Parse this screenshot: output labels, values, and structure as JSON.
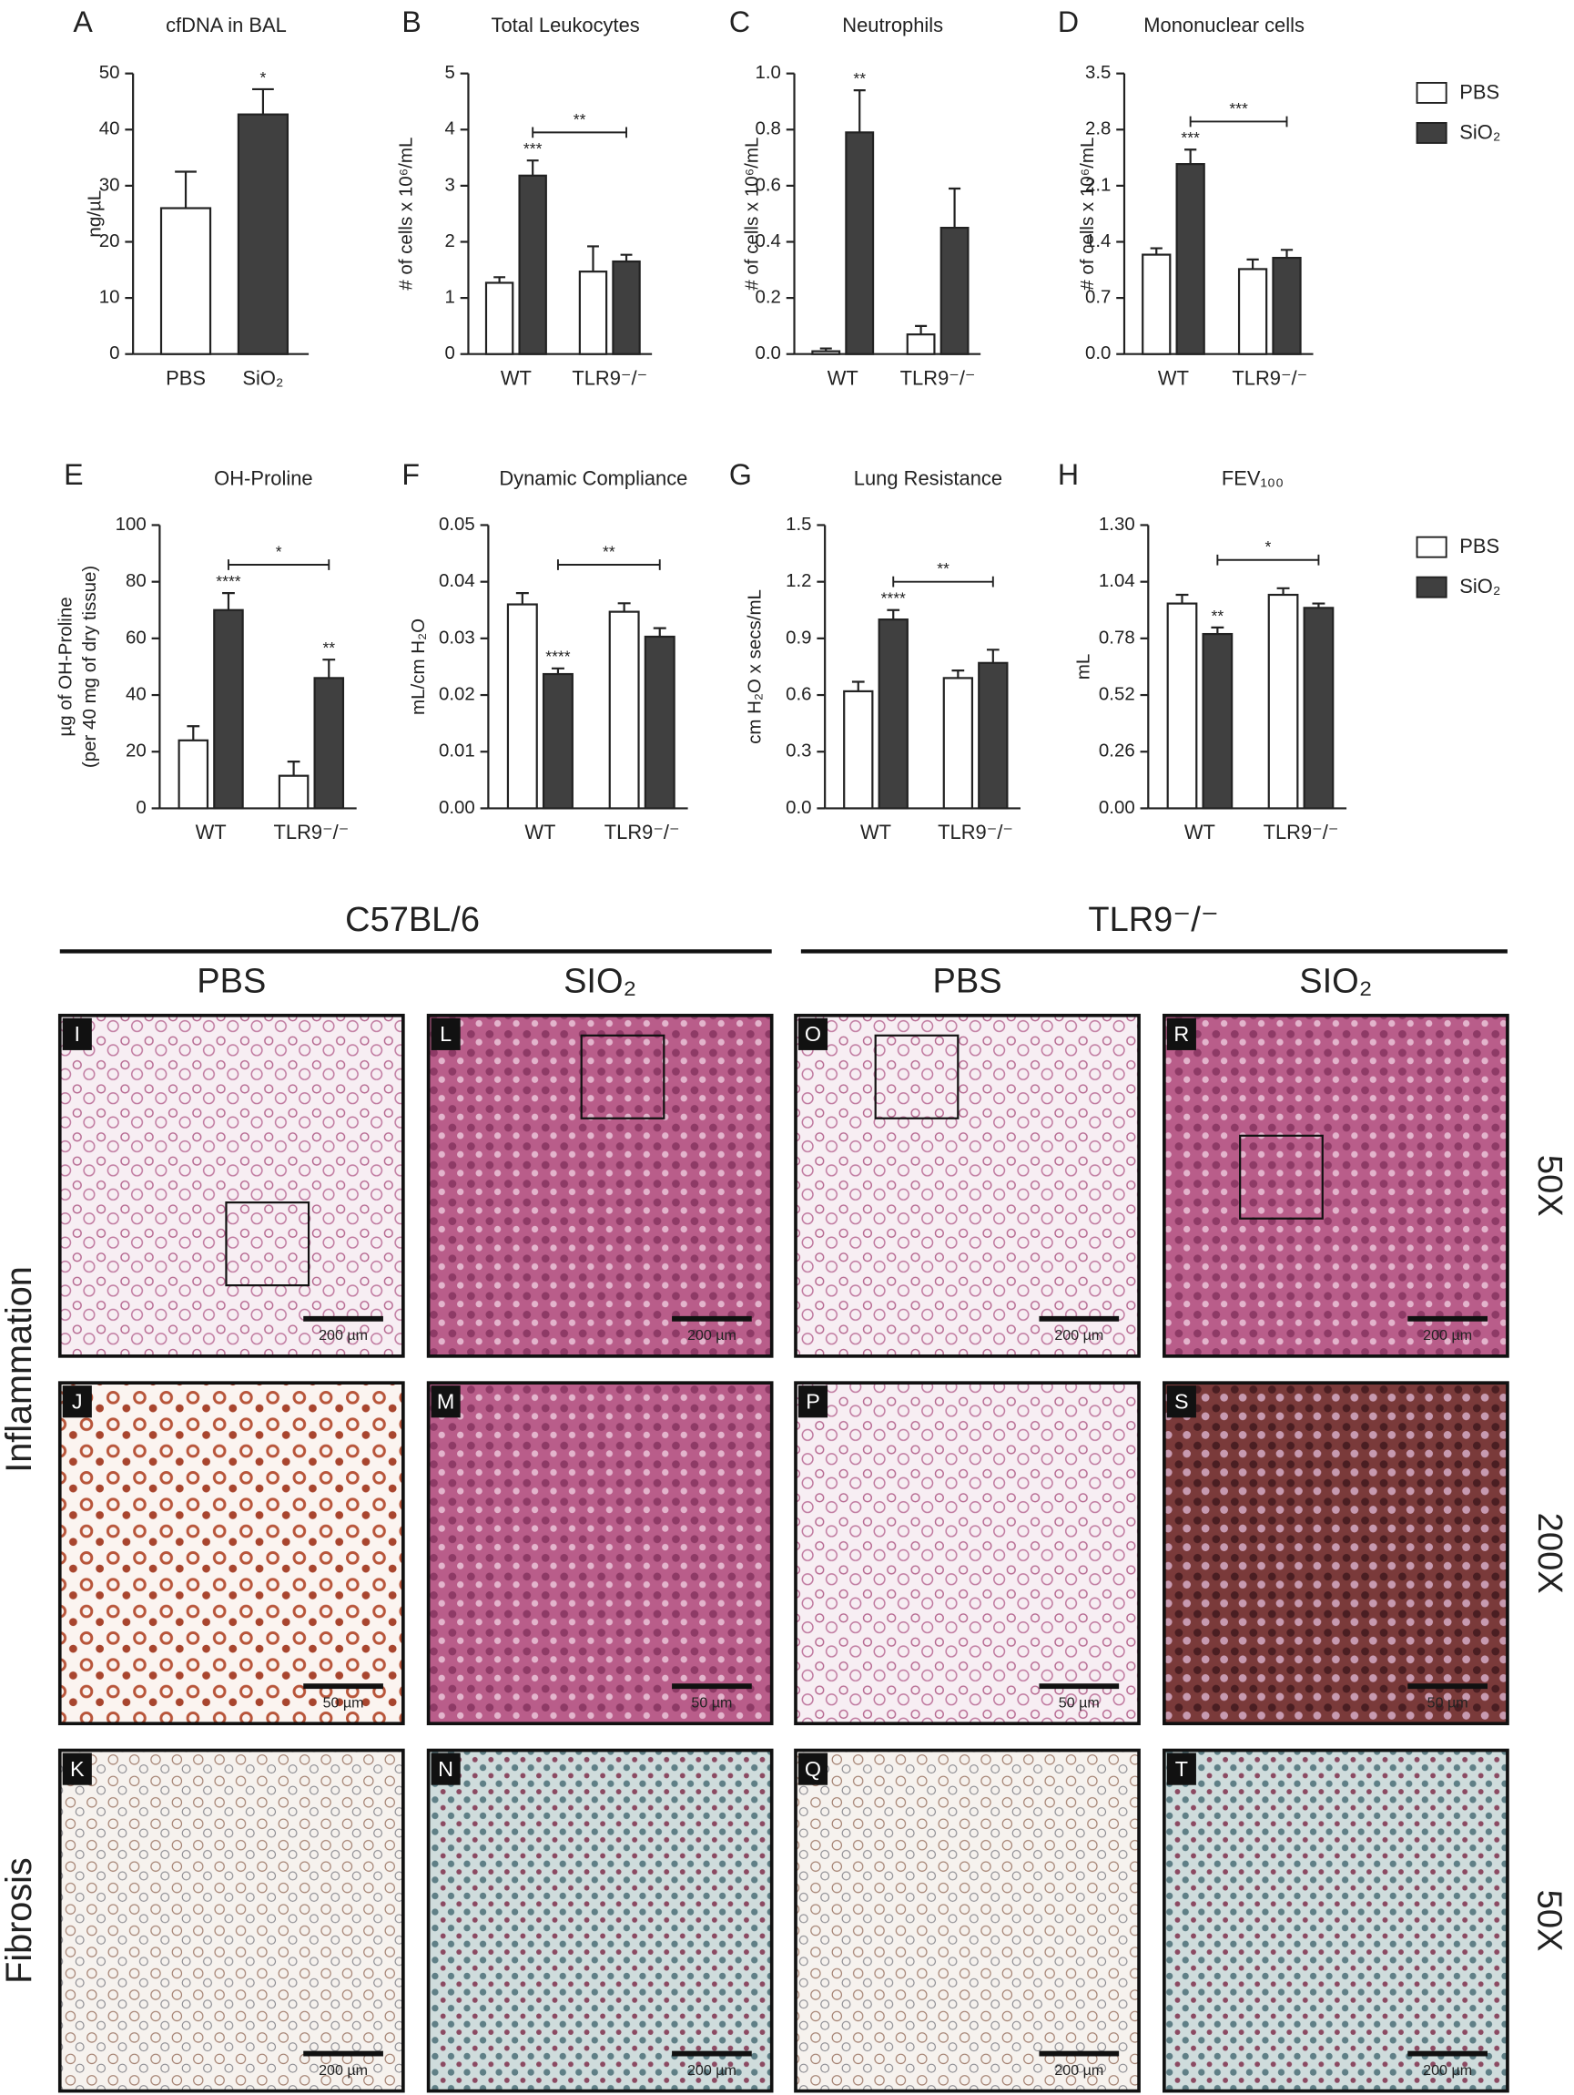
{
  "chart_data": [
    {
      "type": "bar",
      "panel": "A",
      "title": "cfDNA in BAL",
      "ylabel": "ng/µL",
      "categories": [
        "PBS",
        "SiO₂"
      ],
      "values": [
        26,
        42.7
      ],
      "errors": [
        6.5,
        4.5
      ],
      "colors": [
        "#ffffff",
        "#404040"
      ],
      "ylim": [
        0,
        50
      ],
      "yticks": [
        0,
        10,
        20,
        30,
        40,
        50
      ],
      "significance": [
        {
          "label": "*",
          "at": 1
        }
      ]
    },
    {
      "type": "bar",
      "panel": "B",
      "title": "Total Leukocytes",
      "ylabel": "# of cells x 10⁶/mL",
      "categories": [
        "WT",
        "TLR9⁻/⁻"
      ],
      "series": [
        {
          "name": "PBS",
          "color": "#ffffff",
          "values": [
            1.27,
            1.47
          ],
          "errors": [
            0.1,
            0.45
          ]
        },
        {
          "name": "SiO₂",
          "color": "#404040",
          "values": [
            3.18,
            1.65
          ],
          "errors": [
            0.27,
            0.12
          ]
        }
      ],
      "ylim": [
        0,
        5
      ],
      "yticks": [
        0,
        1,
        2,
        3,
        4,
        5
      ],
      "significance": [
        {
          "label": "***",
          "at": [
            1,
            0
          ]
        }
      ],
      "bracket": {
        "label": "**",
        "between": [
          [
            1,
            0
          ],
          [
            1,
            1
          ]
        ]
      }
    },
    {
      "type": "bar",
      "panel": "C",
      "title": "Neutrophils",
      "ylabel": "# of cells x 10⁶/mL",
      "categories": [
        "WT",
        "TLR9⁻/⁻"
      ],
      "series": [
        {
          "name": "PBS",
          "color": "#ffffff",
          "values": [
            0.01,
            0.07
          ],
          "errors": [
            0.01,
            0.03
          ]
        },
        {
          "name": "SiO₂",
          "color": "#404040",
          "values": [
            0.79,
            0.45
          ],
          "errors": [
            0.15,
            0.14
          ]
        }
      ],
      "ylim": [
        0,
        1
      ],
      "yticks": [
        {
          "value": 0,
          "label": "0.0"
        },
        0.2,
        0.4,
        0.6,
        0.8,
        {
          "value": 1,
          "label": "1.0"
        }
      ],
      "significance": [
        {
          "label": "**",
          "at": [
            1,
            0
          ]
        }
      ]
    },
    {
      "type": "bar",
      "panel": "D",
      "title": "Mononuclear cells",
      "ylabel": "# of cells x 10⁶/mL",
      "categories": [
        "WT",
        "TLR9⁻/⁻"
      ],
      "series": [
        {
          "name": "PBS",
          "color": "#ffffff",
          "values": [
            1.24,
            1.06
          ],
          "errors": [
            0.08,
            0.12
          ]
        },
        {
          "name": "SiO₂",
          "color": "#404040",
          "values": [
            2.37,
            1.2
          ],
          "errors": [
            0.18,
            0.1
          ]
        }
      ],
      "ylim": [
        0,
        3.5
      ],
      "yticks": [
        {
          "value": 0,
          "label": "0.0"
        },
        0.7,
        1.4,
        2.1,
        2.8,
        3.5
      ],
      "significance": [
        {
          "label": "***",
          "at": [
            1,
            0
          ]
        }
      ],
      "bracket": {
        "label": "***",
        "between": [
          [
            1,
            0
          ],
          [
            1,
            1
          ]
        ]
      }
    },
    {
      "type": "bar",
      "panel": "E",
      "title": "OH-Proline",
      "ylabel": [
        "µg of OH-Proline",
        "(per 40 mg of dry tissue)"
      ],
      "categories": [
        "WT",
        "TLR9⁻/⁻"
      ],
      "series": [
        {
          "name": "PBS",
          "color": "#ffffff",
          "values": [
            24,
            11.5
          ],
          "errors": [
            5,
            5
          ]
        },
        {
          "name": "SiO₂",
          "color": "#404040",
          "values": [
            70,
            46
          ],
          "errors": [
            6,
            6.5
          ]
        }
      ],
      "ylim": [
        0,
        100
      ],
      "yticks": [
        0,
        20,
        40,
        60,
        80,
        100
      ],
      "significance": [
        {
          "label": "****",
          "at": [
            1,
            0
          ]
        },
        {
          "label": "**",
          "at": [
            1,
            1
          ]
        }
      ],
      "bracket": {
        "label": "*",
        "between": [
          [
            1,
            0
          ],
          [
            1,
            1
          ]
        ]
      }
    },
    {
      "type": "bar",
      "panel": "F",
      "title": "Dynamic Compliance",
      "ylabel": "mL/cm H₂O",
      "categories": [
        "WT",
        "TLR9⁻/⁻"
      ],
      "series": [
        {
          "name": "PBS",
          "color": "#ffffff",
          "values": [
            0.036,
            0.0347
          ],
          "errors": [
            0.002,
            0.0015
          ]
        },
        {
          "name": "SiO₂",
          "color": "#404040",
          "values": [
            0.0237,
            0.0303
          ],
          "errors": [
            0.001,
            0.0015
          ]
        }
      ],
      "ylim": [
        0,
        0.05
      ],
      "yticks": [
        {
          "value": 0,
          "label": "0.00"
        },
        0.01,
        0.02,
        0.03,
        0.04,
        0.05
      ],
      "significance": [
        {
          "label": "****",
          "at": [
            1,
            0
          ]
        }
      ],
      "bracket": {
        "label": "**",
        "between": [
          [
            1,
            0
          ],
          [
            1,
            1
          ]
        ]
      }
    },
    {
      "type": "bar",
      "panel": "G",
      "title": "Lung Resistance",
      "ylabel": "cm H₂O x secs/mL",
      "categories": [
        "WT",
        "TLR9⁻/⁻"
      ],
      "series": [
        {
          "name": "PBS",
          "color": "#ffffff",
          "values": [
            0.62,
            0.69
          ],
          "errors": [
            0.05,
            0.04
          ]
        },
        {
          "name": "SiO₂",
          "color": "#404040",
          "values": [
            1.0,
            0.77
          ],
          "errors": [
            0.05,
            0.07
          ]
        }
      ],
      "ylim": [
        0,
        1.5
      ],
      "yticks": [
        {
          "value": 0,
          "label": "0.0"
        },
        0.3,
        0.6,
        0.9,
        1.2,
        1.5
      ],
      "significance": [
        {
          "label": "****",
          "at": [
            1,
            0
          ]
        }
      ],
      "bracket": {
        "label": "**",
        "between": [
          [
            1,
            0
          ],
          [
            1,
            1
          ]
        ]
      }
    },
    {
      "type": "bar",
      "panel": "H",
      "title": "FEV₁₀₀",
      "ylabel": "mL",
      "categories": [
        "WT",
        "TLR9⁻/⁻"
      ],
      "series": [
        {
          "name": "PBS",
          "color": "#ffffff",
          "values": [
            0.94,
            0.98
          ],
          "errors": [
            0.04,
            0.03
          ]
        },
        {
          "name": "SiO₂",
          "color": "#404040",
          "values": [
            0.8,
            0.92
          ],
          "errors": [
            0.03,
            0.02
          ]
        }
      ],
      "ylim": [
        0,
        1.3
      ],
      "yticks": [
        {
          "value": 0,
          "label": "0.00"
        },
        0.26,
        0.52,
        0.78,
        1.04,
        {
          "value": 1.3,
          "label": "1.30"
        }
      ],
      "significance": [
        {
          "label": "**",
          "at": [
            1,
            0
          ]
        }
      ],
      "bracket": {
        "label": "*",
        "between": [
          [
            1,
            0
          ],
          [
            1,
            1
          ]
        ]
      }
    }
  ],
  "histology": {
    "groups": [
      {
        "label": "C57BL/6",
        "columns": [
          "PBS",
          "SIO₂"
        ]
      },
      {
        "label": "TLR9⁻/⁻",
        "columns": [
          "PBS",
          "SIO₂"
        ]
      }
    ],
    "sections": [
      "Inflammation",
      "Fibrosis"
    ],
    "magnifications": [
      "50X",
      "200X",
      "50X"
    ],
    "panels": [
      [
        "I",
        "L",
        "O",
        "R"
      ],
      [
        "J",
        "M",
        "P",
        "S"
      ],
      [
        "K",
        "N",
        "Q",
        "T"
      ]
    ],
    "scale_bars": [
      "200 µm",
      "50 µm",
      "200 µm"
    ]
  }
}
